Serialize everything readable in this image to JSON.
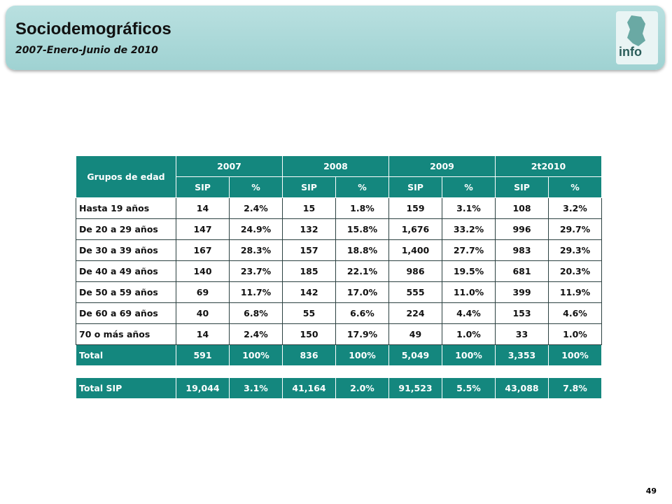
{
  "header": {
    "title": "Sociodemográficos",
    "subtitle": "2007-Enero-Junio de 2010",
    "logo": "info"
  },
  "table": {
    "corner": "Grupos de edad",
    "years": [
      "2007",
      "2008",
      "2009",
      "2t2010"
    ],
    "subheaders": [
      "SIP",
      "%",
      "SIP",
      "%",
      "SIP",
      "%",
      "SIP",
      "%"
    ],
    "rows": [
      [
        "Hasta 19 años",
        "14",
        "2.4%",
        "15",
        "1.8%",
        "159",
        "3.1%",
        "108",
        "3.2%"
      ],
      [
        "De 20 a 29 años",
        "147",
        "24.9%",
        "132",
        "15.8%",
        "1,676",
        "33.2%",
        "996",
        "29.7%"
      ],
      [
        "De 30 a 39 años",
        "167",
        "28.3%",
        "157",
        "18.8%",
        "1,400",
        "27.7%",
        "983",
        "29.3%"
      ],
      [
        "De 40 a 49 años",
        "140",
        "23.7%",
        "185",
        "22.1%",
        "986",
        "19.5%",
        "681",
        "20.3%"
      ],
      [
        "De 50 a 59 años",
        "69",
        "11.7%",
        "142",
        "17.0%",
        "555",
        "11.0%",
        "399",
        "11.9%"
      ],
      [
        "De 60 a 69 años",
        "40",
        "6.8%",
        "55",
        "6.6%",
        "224",
        "4.4%",
        "153",
        "4.6%"
      ],
      [
        "70 o más años",
        "14",
        "2.4%",
        "150",
        "17.9%",
        "49",
        "1.0%",
        "33",
        "1.0%"
      ]
    ],
    "total": [
      "Total",
      "591",
      "100%",
      "836",
      "100%",
      "5,049",
      "100%",
      "3,353",
      "100%"
    ],
    "total_sip": [
      "Total SIP",
      "19,044",
      "3.1%",
      "41,164",
      "2.0%",
      "91,523",
      "5.5%",
      "43,088",
      "7.8%"
    ]
  },
  "page_number": "49"
}
